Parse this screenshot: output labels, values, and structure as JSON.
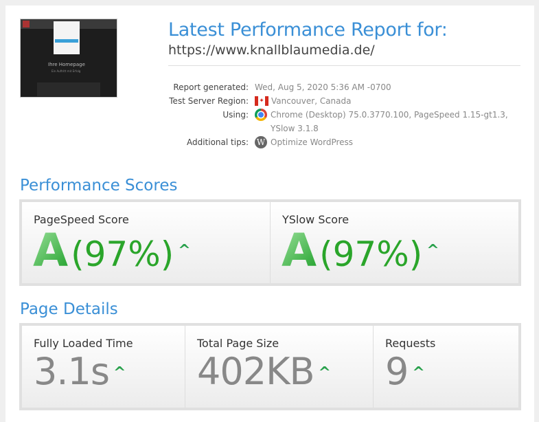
{
  "header": {
    "title": "Latest Performance Report for:",
    "url": "https://www.knallblaumedia.de/",
    "thumbnail": {
      "heading": "Ihre Homepage",
      "subheading": "Ein Auftritt mit Erfolg"
    }
  },
  "meta": [
    {
      "label": "Report generated:",
      "value": "Wed, Aug 5, 2020 5:36 AM -0700"
    },
    {
      "label": "Test Server Region:",
      "value": "Vancouver, Canada",
      "icon": "canada-flag-icon"
    },
    {
      "label": "Using:",
      "value": "Chrome (Desktop) 75.0.3770.100, PageSpeed 1.15-gt1.3,",
      "value2": "YSlow 3.1.8",
      "icon": "chrome-icon"
    },
    {
      "label": "Additional tips:",
      "value": "Optimize WordPress",
      "icon": "wordpress-icon"
    }
  ],
  "scores": {
    "title": "Performance Scores",
    "items": [
      {
        "label": "PageSpeed Score",
        "grade": "A",
        "percent": "(97%)",
        "trend": "up"
      },
      {
        "label": "YSlow Score",
        "grade": "A",
        "percent": "(97%)",
        "trend": "up"
      }
    ]
  },
  "details": {
    "title": "Page Details",
    "items": [
      {
        "label": "Fully Loaded Time",
        "value": "3.1s",
        "trend": "up"
      },
      {
        "label": "Total Page Size",
        "value": "402KB",
        "trend": "up"
      },
      {
        "label": "Requests",
        "value": "9",
        "trend": "up"
      }
    ]
  },
  "colors": {
    "accent": "#3a8fd6",
    "grade_green": "#2aa52a",
    "trend_green": "#2aa14d"
  }
}
